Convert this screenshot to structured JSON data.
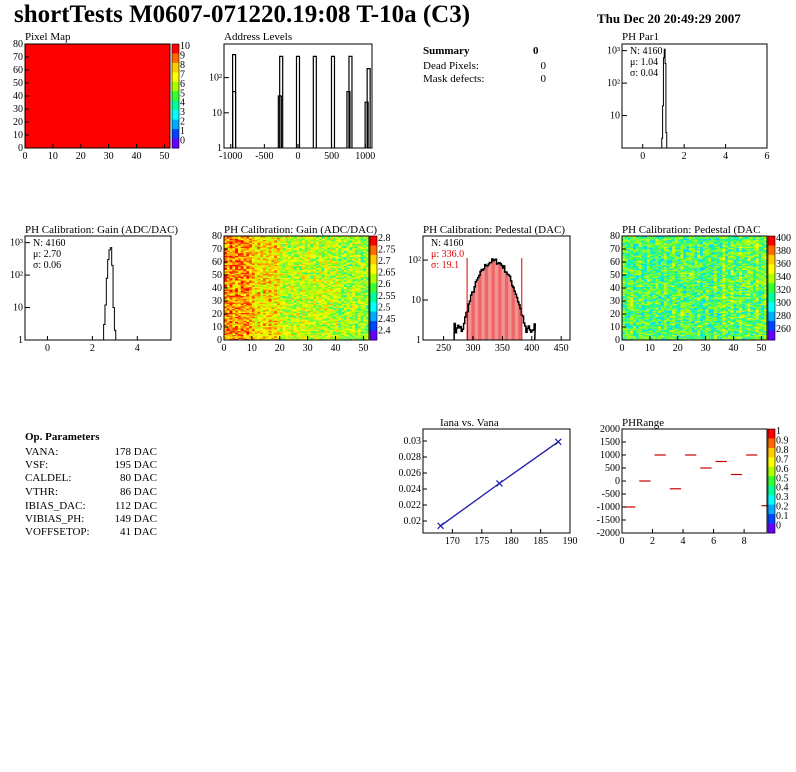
{
  "header": {
    "title": "shortTests M0607-071220.19:08 T-10a (C3)",
    "datestamp": "Thu Dec 20 20:49:29 2007"
  },
  "summary": {
    "title": "Summary",
    "count": "0",
    "rows": [
      {
        "label": "Dead Pixels:",
        "value": "0"
      },
      {
        "label": "Mask defects:",
        "value": "0"
      }
    ]
  },
  "op_parameters": {
    "title": "Op. Parameters",
    "rows": [
      {
        "label": "VANA:",
        "value": "178 DAC"
      },
      {
        "label": "VSF:",
        "value": "195 DAC"
      },
      {
        "label": "CALDEL:",
        "value": "80 DAC"
      },
      {
        "label": "VTHR:",
        "value": "86 DAC"
      },
      {
        "label": "IBIAS_DAC:",
        "value": "112 DAC"
      },
      {
        "label": "VIBIAS_PH:",
        "value": "149 DAC"
      },
      {
        "label": "VOFFSETOP:",
        "value": "41 DAC"
      }
    ]
  },
  "colors": {
    "hist_line": "#000000",
    "fit_red": "#e00000",
    "series_blue": "#1a1aa8",
    "dash_red": "#cc0000",
    "pixel_fill": "#ff0000"
  },
  "chart_data": [
    {
      "id": "pixel-map",
      "type": "heatmap",
      "title": "Pixel Map",
      "xlim": [
        0,
        52
      ],
      "ylim": [
        0,
        80
      ],
      "x_ticks": [
        0,
        10,
        20,
        30,
        40,
        50
      ],
      "y_ticks": [
        0,
        10,
        20,
        30,
        40,
        50,
        60,
        70,
        80
      ],
      "palette_labels": [
        "10",
        "9",
        "8",
        "7",
        "6",
        "5",
        "4",
        "3",
        "2",
        "1",
        "0"
      ],
      "uniform_value": 10
    },
    {
      "id": "address-levels",
      "type": "bar",
      "title": "Address Levels",
      "xlim": [
        -1100,
        1100
      ],
      "x_ticks": [
        -1000,
        -500,
        0,
        500,
        1000
      ],
      "log_y": true,
      "ylim": [
        1,
        900
      ],
      "y_ticks": [
        {
          "v": 1,
          "t": "1"
        },
        {
          "v": 10,
          "t": "10"
        },
        {
          "v": 100,
          "t": "10²"
        }
      ],
      "peaks": [
        {
          "x": -950,
          "y": 40
        },
        {
          "x": -250,
          "y": 400
        },
        {
          "x": 0,
          "y": 400
        },
        {
          "x": 250,
          "y": 400
        },
        {
          "x": 520,
          "y": 400
        },
        {
          "x": 780,
          "y": 400
        },
        {
          "x": 1050,
          "y": 180
        }
      ],
      "peak_tails": [
        {
          "x": -950,
          "y": 450
        },
        {
          "x": -270,
          "y": 30
        },
        {
          "x": 750,
          "y": 40
        },
        {
          "x": 1020,
          "y": 20
        }
      ]
    },
    {
      "id": "ph-par1",
      "type": "bar",
      "title": "PH Par1",
      "xlim": [
        -1,
        6
      ],
      "x_ticks": [
        0,
        2,
        4,
        6
      ],
      "log_y": true,
      "ylim": [
        1,
        1600
      ],
      "y_ticks": [
        {
          "v": 10,
          "t": "10"
        },
        {
          "v": 100,
          "t": "10²"
        },
        {
          "v": 1000,
          "t": "10³"
        }
      ],
      "stats": {
        "N": "N: 4160",
        "mean": "μ: 1.04",
        "sigma": "σ: 0.04"
      },
      "bins": [
        [
          0.92,
          2
        ],
        [
          0.96,
          20
        ],
        [
          1.0,
          600
        ],
        [
          1.04,
          1100
        ],
        [
          1.08,
          400
        ],
        [
          1.12,
          3
        ]
      ]
    },
    {
      "id": "ph-gain-hist",
      "type": "bar",
      "title": "PH Calibration: Gain (ADC/DAC)",
      "xlim": [
        -1,
        5.5
      ],
      "x_ticks": [
        0,
        2,
        4
      ],
      "log_y": true,
      "ylim": [
        1,
        1600
      ],
      "y_ticks": [
        {
          "v": 1,
          "t": "1"
        },
        {
          "v": 10,
          "t": "10"
        },
        {
          "v": 100,
          "t": "10²"
        },
        {
          "v": 1000,
          "t": "10³"
        }
      ],
      "stats": {
        "N": "N: 4160",
        "mean": "μ: 2.70",
        "sigma": "σ: 0.06"
      },
      "bins": [
        [
          2.5,
          3
        ],
        [
          2.56,
          12
        ],
        [
          2.62,
          80
        ],
        [
          2.68,
          300
        ],
        [
          2.74,
          600
        ],
        [
          2.8,
          700
        ],
        [
          2.86,
          200
        ],
        [
          2.92,
          10
        ],
        [
          2.98,
          2
        ]
      ]
    },
    {
      "id": "ph-gain-map",
      "type": "heatmap",
      "title": "PH Calibration: Gain (ADC/DAC)",
      "xlim": [
        0,
        52
      ],
      "ylim": [
        0,
        80
      ],
      "x_ticks": [
        0,
        10,
        20,
        30,
        40,
        50
      ],
      "y_ticks": [
        0,
        10,
        20,
        30,
        40,
        50,
        60,
        70,
        80
      ],
      "palette_labels": [
        "2.8",
        "2.75",
        "2.7",
        "2.65",
        "2.6",
        "2.55",
        "2.5",
        "2.45",
        "2.4"
      ]
    },
    {
      "id": "ph-pedestal-hist",
      "type": "bar",
      "title": "PH Calibration: Pedestal (DAC)",
      "xlim": [
        215,
        465
      ],
      "x_ticks": [
        250,
        300,
        350,
        400,
        450
      ],
      "log_y": true,
      "ylim": [
        1,
        400
      ],
      "y_ticks": [
        {
          "v": 1,
          "t": "1"
        },
        {
          "v": 10,
          "t": "10"
        },
        {
          "v": 100,
          "t": "10²"
        }
      ],
      "stats": {
        "N": "N: 4160",
        "mean": "μ: 336.0",
        "sigma": "σ: 19.1"
      },
      "fit_range": [
        290,
        383
      ],
      "mean": 336.0,
      "sigma": 19.1,
      "peak": 95,
      "range": [
        268,
        405
      ]
    },
    {
      "id": "ph-pedestal-map",
      "type": "heatmap",
      "title": "PH Calibration: Pedestal (DAC",
      "xlim": [
        0,
        52
      ],
      "ylim": [
        0,
        80
      ],
      "x_ticks": [
        0,
        10,
        20,
        30,
        40,
        50
      ],
      "y_ticks": [
        0,
        10,
        20,
        30,
        40,
        50,
        60,
        70,
        80
      ],
      "palette_labels": [
        "400",
        "380",
        "360",
        "340",
        "320",
        "300",
        "280",
        "260"
      ]
    },
    {
      "id": "iana-vana",
      "type": "line",
      "title": "Iana vs. Vana",
      "xlim": [
        165,
        190
      ],
      "ylim": [
        0.0185,
        0.0315
      ],
      "x_ticks": [
        170,
        175,
        180,
        185,
        190
      ],
      "y_ticks": [
        {
          "v": 0.02,
          "t": "0.02"
        },
        {
          "v": 0.022,
          "t": "0.022"
        },
        {
          "v": 0.024,
          "t": "0.024"
        },
        {
          "v": 0.026,
          "t": "0.026"
        },
        {
          "v": 0.028,
          "t": "0.028"
        },
        {
          "v": 0.03,
          "t": "0.03"
        }
      ],
      "points": [
        [
          168,
          0.0194
        ],
        [
          178,
          0.0247
        ],
        [
          188,
          0.0299
        ]
      ]
    },
    {
      "id": "ph-range",
      "type": "scatter",
      "title": "PHRange",
      "xlim": [
        0,
        9.5
      ],
      "ylim": [
        -2000,
        2000
      ],
      "x_ticks": [
        0,
        2,
        4,
        6,
        8
      ],
      "y_ticks": [
        {
          "v": 2000,
          "t": "2000"
        },
        {
          "v": 1500,
          "t": "1500"
        },
        {
          "v": 1000,
          "t": "1000"
        },
        {
          "v": 500,
          "t": "500"
        },
        {
          "v": 0,
          "t": "0"
        },
        {
          "v": -500,
          "t": "-500"
        },
        {
          "v": -1000,
          "t": "-1000"
        },
        {
          "v": -1500,
          "t": "-1500"
        },
        {
          "v": -2000,
          "t": "-2000"
        }
      ],
      "palette_labels": [
        "1",
        "0.9",
        "0.8",
        "0.7",
        "0.6",
        "0.5",
        "0.4",
        "0.3",
        "0.2",
        "0.1",
        "0"
      ],
      "segments": [
        [
          0,
          -1000
        ],
        [
          1,
          0
        ],
        [
          2,
          1000
        ],
        [
          3,
          -300
        ],
        [
          4,
          1000
        ],
        [
          5,
          500
        ],
        [
          6,
          750
        ],
        [
          7,
          250
        ],
        [
          8,
          1000
        ],
        [
          9,
          -950
        ]
      ]
    }
  ]
}
